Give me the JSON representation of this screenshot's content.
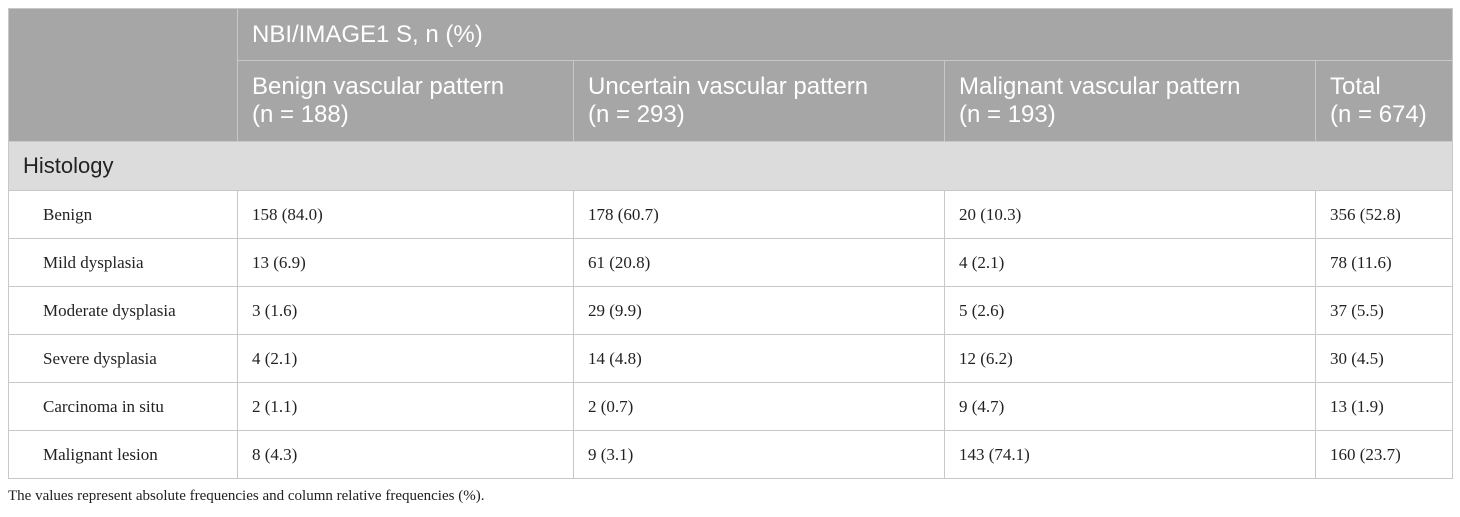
{
  "header": {
    "group_label": "NBI/IMAGE1 S, n (%)",
    "columns": [
      {
        "name": "Benign vascular pattern",
        "n": "(n = 188)"
      },
      {
        "name": "Uncertain vascular pattern",
        "n": "(n = 293)"
      },
      {
        "name": "Malignant vascular pattern",
        "n": "(n = 193)"
      },
      {
        "name": "Total",
        "n": "(n = 674)"
      }
    ]
  },
  "section_label": "Histology",
  "rows": [
    {
      "label": "Benign",
      "values": [
        "158 (84.0)",
        "178 (60.7)",
        "20 (10.3)",
        "356 (52.8)"
      ]
    },
    {
      "label": "Mild dysplasia",
      "values": [
        "13 (6.9)",
        "61 (20.8)",
        "4 (2.1)",
        "78 (11.6)"
      ]
    },
    {
      "label": "Moderate dysplasia",
      "values": [
        "3 (1.6)",
        "29 (9.9)",
        "5 (2.6)",
        "37 (5.5)"
      ]
    },
    {
      "label": "Severe dysplasia",
      "values": [
        "4 (2.1)",
        "14 (4.8)",
        "12 (6.2)",
        "30 (4.5)"
      ]
    },
    {
      "label": "Carcinoma in situ",
      "values": [
        "2 (1.1)",
        "2 (0.7)",
        "9 (4.7)",
        "13 (1.9)"
      ]
    },
    {
      "label": "Malignant lesion",
      "values": [
        "8 (4.3)",
        "9 (3.1)",
        "143 (74.1)",
        "160 (23.7)"
      ]
    }
  ],
  "footnote": "The values represent absolute frequencies and column relative frequencies (%)."
}
